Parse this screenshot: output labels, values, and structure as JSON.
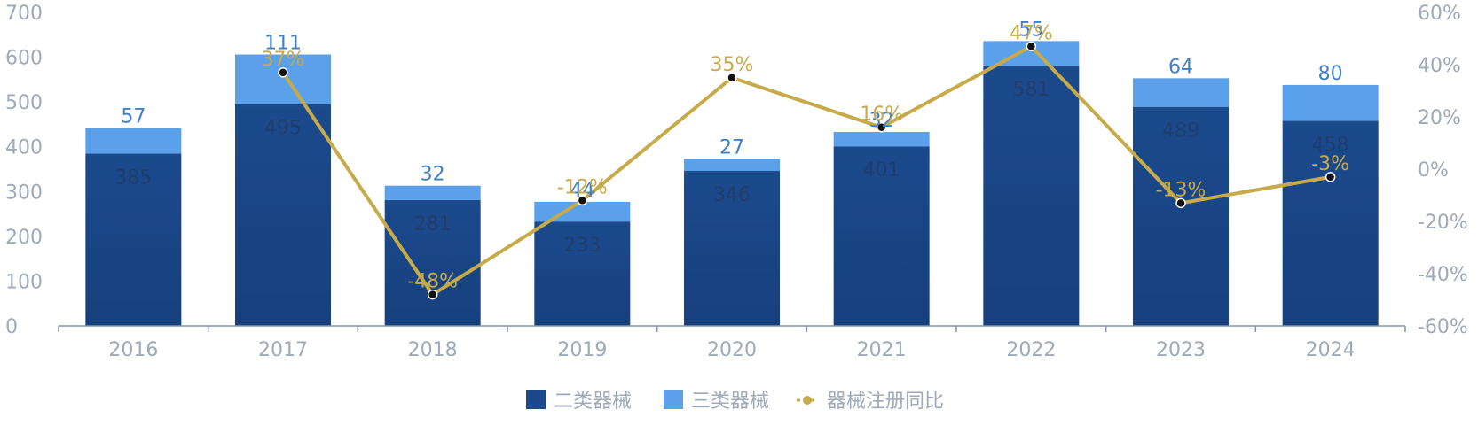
{
  "chart_data": {
    "type": "bar",
    "stacked": true,
    "categories": [
      "2016",
      "2017",
      "2018",
      "2019",
      "2020",
      "2021",
      "2022",
      "2023",
      "2024"
    ],
    "series": [
      {
        "name": "二类器械",
        "values": [
          385,
          495,
          281,
          233,
          346,
          401,
          581,
          489,
          458
        ],
        "labels": [
          "385",
          "495",
          "281",
          "233",
          "346",
          "401",
          "581",
          "489",
          "458"
        ],
        "color": "#1a4a8c"
      },
      {
        "name": "三类器械",
        "values": [
          57,
          111,
          32,
          44,
          27,
          32,
          55,
          64,
          80
        ],
        "labels": [
          "57",
          "111",
          "32",
          "44",
          "27",
          "32",
          "55",
          "64",
          "80"
        ],
        "color": "#5aa0ea"
      }
    ],
    "line": {
      "name": "器械注册同比",
      "values": [
        null,
        37,
        -48,
        -12,
        35,
        16,
        47,
        -13,
        -3
      ],
      "labels": [
        "",
        "37%",
        "-48%",
        "-12%",
        "35%",
        "16%",
        "47%",
        "-13%",
        "-3%"
      ],
      "color": "#c7ab4a"
    },
    "y_left": {
      "range": [
        0,
        700
      ],
      "ticks": [
        "0",
        "100",
        "200",
        "300",
        "400",
        "500",
        "600",
        "700"
      ]
    },
    "y_right": {
      "range": [
        -60,
        60
      ],
      "ticks": [
        "-60%",
        "-40%",
        "-20%",
        "0%",
        "20%",
        "40%",
        "60%"
      ]
    },
    "legend": {
      "placement": "bottom",
      "items": [
        "二类器械",
        "三类器械",
        "器械注册同比"
      ]
    }
  }
}
